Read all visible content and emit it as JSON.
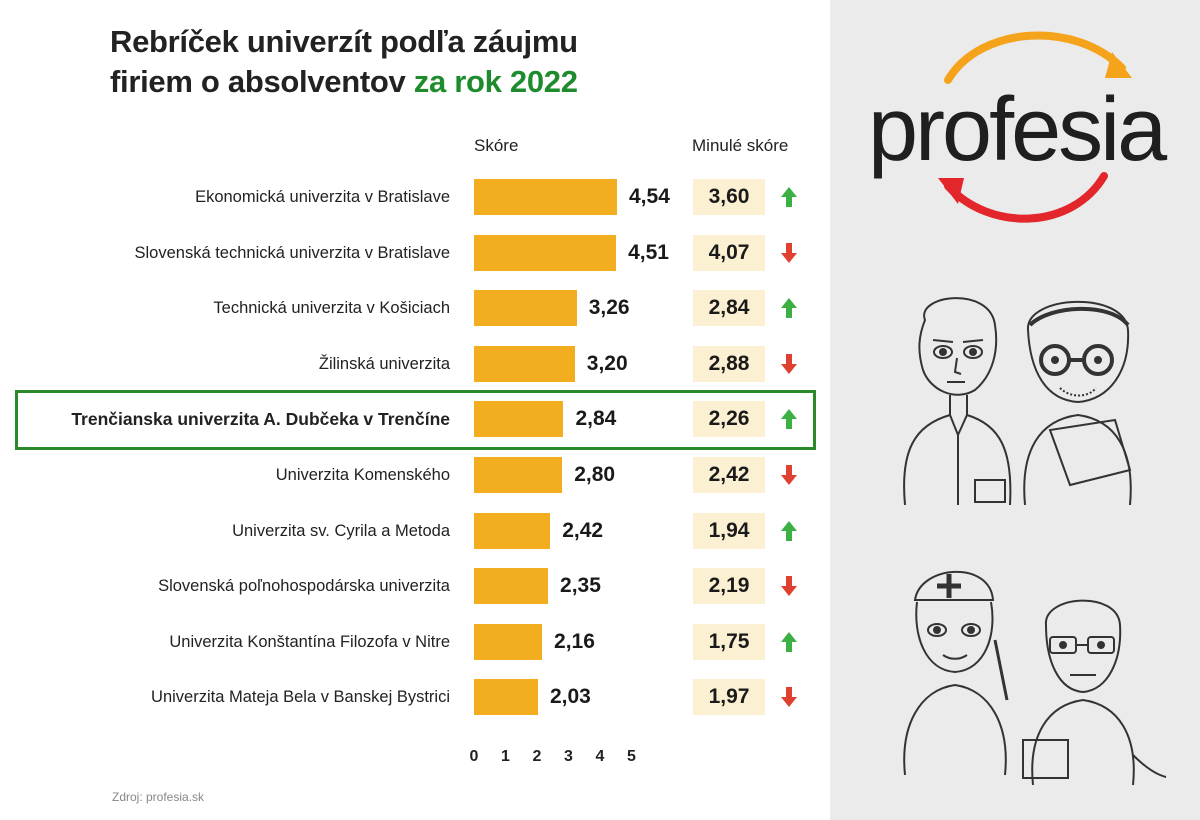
{
  "title": {
    "line1": "Rebríček univerzít podľa záujmu",
    "line2_prefix": "firiem o absolventov ",
    "line2_accent": "za rok 2022"
  },
  "headers": {
    "score": "Skóre",
    "previous": "Minulé skóre"
  },
  "source": "Zdroj: profesia.sk",
  "brand": {
    "logo_text": "profesia",
    "accent_color": "#1e8c2c",
    "bar_color": "#f2ae1f",
    "up_color": "#3cb043",
    "down_color": "#e04030"
  },
  "chart_data": {
    "type": "bar",
    "orientation": "horizontal",
    "xlim": [
      0,
      5
    ],
    "ticks": [
      "0",
      "1",
      "2",
      "3",
      "4",
      "5"
    ],
    "rows": [
      {
        "label": "Ekonomická univerzita v Bratislave",
        "score": 4.54,
        "score_text": "4,54",
        "previous": 3.6,
        "previous_text": "3,60",
        "trend": "up",
        "highlight": false
      },
      {
        "label": "Slovenská technická univerzita v Bratislave",
        "score": 4.51,
        "score_text": "4,51",
        "previous": 4.07,
        "previous_text": "4,07",
        "trend": "down",
        "highlight": false
      },
      {
        "label": "Technická univerzita v Košiciach",
        "score": 3.26,
        "score_text": "3,26",
        "previous": 2.84,
        "previous_text": "2,84",
        "trend": "up",
        "highlight": false
      },
      {
        "label": "Žilinská univerzita",
        "score": 3.2,
        "score_text": "3,20",
        "previous": 2.88,
        "previous_text": "2,88",
        "trend": "down",
        "highlight": false
      },
      {
        "label": "Trenčianska univerzita A. Dubčeka v Trenčíne",
        "score": 2.84,
        "score_text": "2,84",
        "previous": 2.26,
        "previous_text": "2,26",
        "trend": "up",
        "highlight": true
      },
      {
        "label": "Univerzita Komenského",
        "score": 2.8,
        "score_text": "2,80",
        "previous": 2.42,
        "previous_text": "2,42",
        "trend": "down",
        "highlight": false
      },
      {
        "label": "Univerzita sv. Cyrila a Metoda",
        "score": 2.42,
        "score_text": "2,42",
        "previous": 1.94,
        "previous_text": "1,94",
        "trend": "up",
        "highlight": false
      },
      {
        "label": "Slovenská poľnohospodárska univerzita",
        "score": 2.35,
        "score_text": "2,35",
        "previous": 2.19,
        "previous_text": "2,19",
        "trend": "down",
        "highlight": false
      },
      {
        "label": "Univerzita Konštantína Filozofa v Nitre",
        "score": 2.16,
        "score_text": "2,16",
        "previous": 1.75,
        "previous_text": "1,75",
        "trend": "up",
        "highlight": false
      },
      {
        "label": "Univerzita Mateja Bela v Banskej Bystrici",
        "score": 2.03,
        "score_text": "2,03",
        "previous": 1.97,
        "previous_text": "1,97",
        "trend": "down",
        "highlight": false
      }
    ]
  }
}
